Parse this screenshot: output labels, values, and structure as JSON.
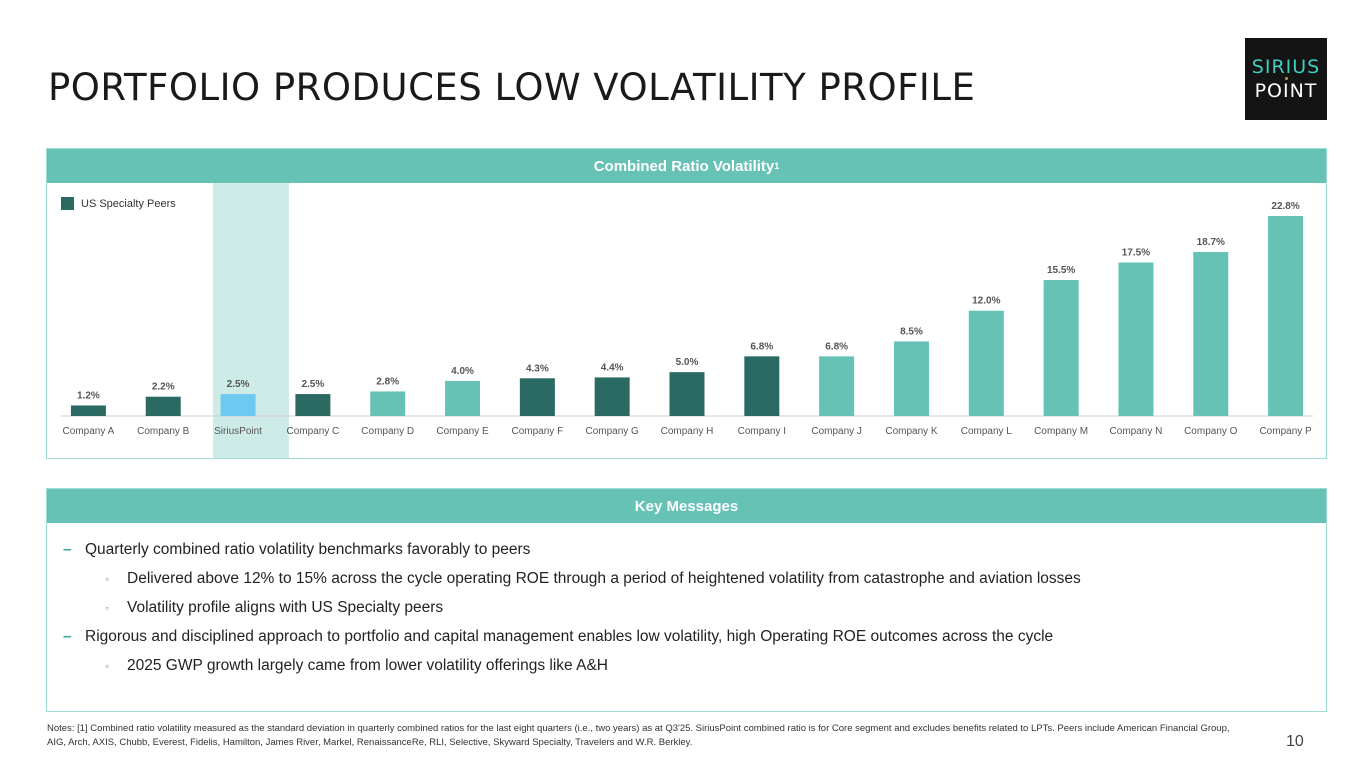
{
  "title": "PORTFOLIO PRODUCES LOW VOLATILITY PROFILE",
  "logo": {
    "line1": "SIRIUS",
    "line2": "POINT"
  },
  "chart_panel": {
    "header": "Combined Ratio Volatility",
    "header_sup": "1"
  },
  "colors": {
    "peer": "#2a6a62",
    "other": "#66c2b5",
    "siriuspoint": "#6ec9f0",
    "header": "#66c2b5"
  },
  "chart_data": {
    "type": "bar",
    "title": "Combined Ratio Volatility",
    "legend": [
      {
        "label": "US Specialty Peers",
        "color": "#2a6a62"
      }
    ],
    "legend_position": "top-left",
    "categories": [
      "Company A",
      "Company B",
      "SiriusPoint",
      "Company C",
      "Company D",
      "Company E",
      "Company F",
      "Company G",
      "Company H",
      "Company I",
      "Company J",
      "Company K",
      "Company L",
      "Company M",
      "Company N",
      "Company O",
      "Company P"
    ],
    "values": [
      1.2,
      2.2,
      2.5,
      2.5,
      2.8,
      4.0,
      4.3,
      4.4,
      5.0,
      6.8,
      6.8,
      8.5,
      12.0,
      15.5,
      17.5,
      18.7,
      22.8
    ],
    "labels": [
      "1.2%",
      "2.2%",
      "2.5%",
      "2.5%",
      "2.8%",
      "4.0%",
      "4.3%",
      "4.4%",
      "5.0%",
      "6.8%",
      "6.8%",
      "8.5%",
      "12.0%",
      "15.5%",
      "17.5%",
      "18.7%",
      "22.8%"
    ],
    "groups": [
      "peer",
      "peer",
      "siriuspoint",
      "peer",
      "other",
      "other",
      "peer",
      "peer",
      "peer",
      "peer",
      "other",
      "other",
      "other",
      "other",
      "other",
      "other",
      "other"
    ],
    "highlight": "SiriusPoint",
    "ylim": [
      0,
      22.8
    ],
    "xlabel": "",
    "ylabel": ""
  },
  "messages_panel": {
    "header": "Key Messages",
    "items": [
      {
        "level": 1,
        "bullet": "–",
        "text": "Quarterly combined ratio volatility benchmarks favorably to peers"
      },
      {
        "level": 2,
        "bullet": "◦",
        "text": "Delivered above 12% to 15% across the cycle operating ROE through a period of heightened volatility from catastrophe and aviation losses"
      },
      {
        "level": 2,
        "bullet": "◦",
        "text": "Volatility profile aligns with US Specialty peers"
      },
      {
        "level": 1,
        "bullet": "–",
        "text": "Rigorous and disciplined approach to portfolio and capital management enables low volatility, high Operating ROE outcomes across the cycle"
      },
      {
        "level": 2,
        "bullet": "◦",
        "text": "2025 GWP growth largely came from lower volatility offerings like A&H"
      }
    ]
  },
  "notes": "Notes: [1] Combined ratio volatility measured as the standard deviation in quarterly combined ratios for the last eight quarters (i.e., two years) as at Q3'25. SiriusPoint combined ratio is for Core segment and excludes benefits related to LPTs. Peers include American Financial Group, AIG, Arch, AXIS, Chubb, Everest, Fidelis, Hamilton, James River, Markel, RenaissanceRe, RLI, Selective, Skyward Specialty, Travelers and W.R. Berkley.",
  "page_number": "10"
}
